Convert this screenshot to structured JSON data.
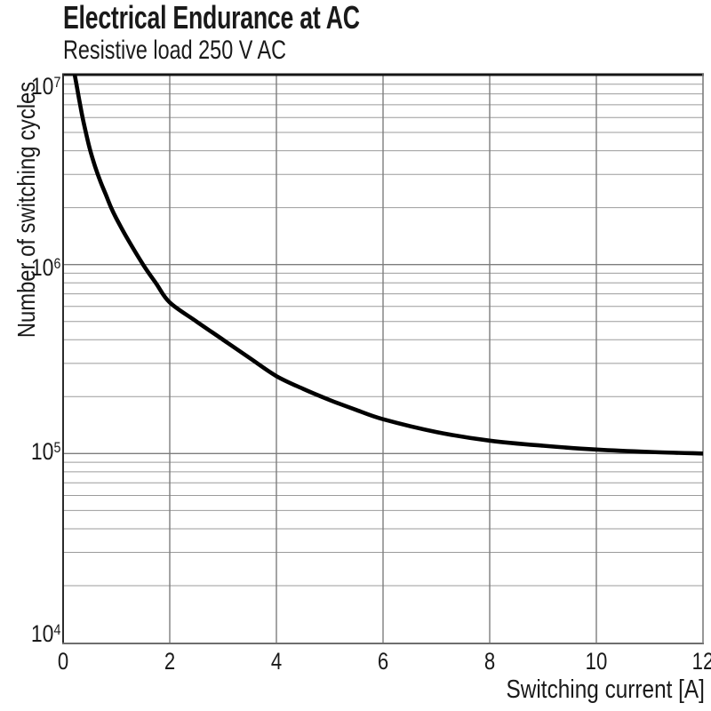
{
  "chart_data": {
    "type": "line",
    "title": "Electrical Endurance at AC",
    "subtitle": "Resistive load 250 V AC",
    "xlabel": "Switching current [A]",
    "ylabel": "Number of switching cycles",
    "x_ticks": [
      0,
      2,
      4,
      6,
      8,
      10,
      12
    ],
    "xlim": [
      0,
      12
    ],
    "y_scale": "log",
    "ylim": [
      10000,
      10000000
    ],
    "y_tick_exponents": [
      7,
      6,
      5,
      4
    ],
    "grid": {
      "x_major_step": 2,
      "y_log_minor": true,
      "legend": "none",
      "minor_color": "#9b9b9b",
      "major_color": "#7d7d7d"
    },
    "colors": {
      "curve": "#000000",
      "text": "#1a1a1a",
      "border_top": "#161616",
      "border_left": "#2b2b2b",
      "border_bottom": "#6e6e6e",
      "border_right": "#7d7d7d"
    },
    "series": [
      {
        "name": "Electrical endurance, resistive load 250 V AC",
        "color": "#000000",
        "points_A_cycles": [
          [
            0.22,
            10000000
          ],
          [
            0.25,
            9000000
          ],
          [
            0.3,
            7500000
          ],
          [
            0.35,
            6300000
          ],
          [
            0.4,
            5400000
          ],
          [
            0.5,
            4100000
          ],
          [
            0.6,
            3300000
          ],
          [
            0.7,
            2750000
          ],
          [
            0.8,
            2350000
          ],
          [
            0.9,
            2000000
          ],
          [
            1.0,
            1750000
          ],
          [
            1.2,
            1380000
          ],
          [
            1.5,
            1000000
          ],
          [
            1.75,
            790000
          ],
          [
            2.0,
            630000
          ],
          [
            2.5,
            500000
          ],
          [
            3.0,
            400000
          ],
          [
            3.5,
            320000
          ],
          [
            4.0,
            257000
          ],
          [
            4.5,
            220000
          ],
          [
            5.0,
            192000
          ],
          [
            5.5,
            170000
          ],
          [
            6.0,
            152000
          ],
          [
            7.0,
            130000
          ],
          [
            8.0,
            117000
          ],
          [
            9.0,
            110000
          ],
          [
            10.0,
            105000
          ],
          [
            11.0,
            102000
          ],
          [
            12.0,
            100000
          ]
        ]
      }
    ]
  }
}
